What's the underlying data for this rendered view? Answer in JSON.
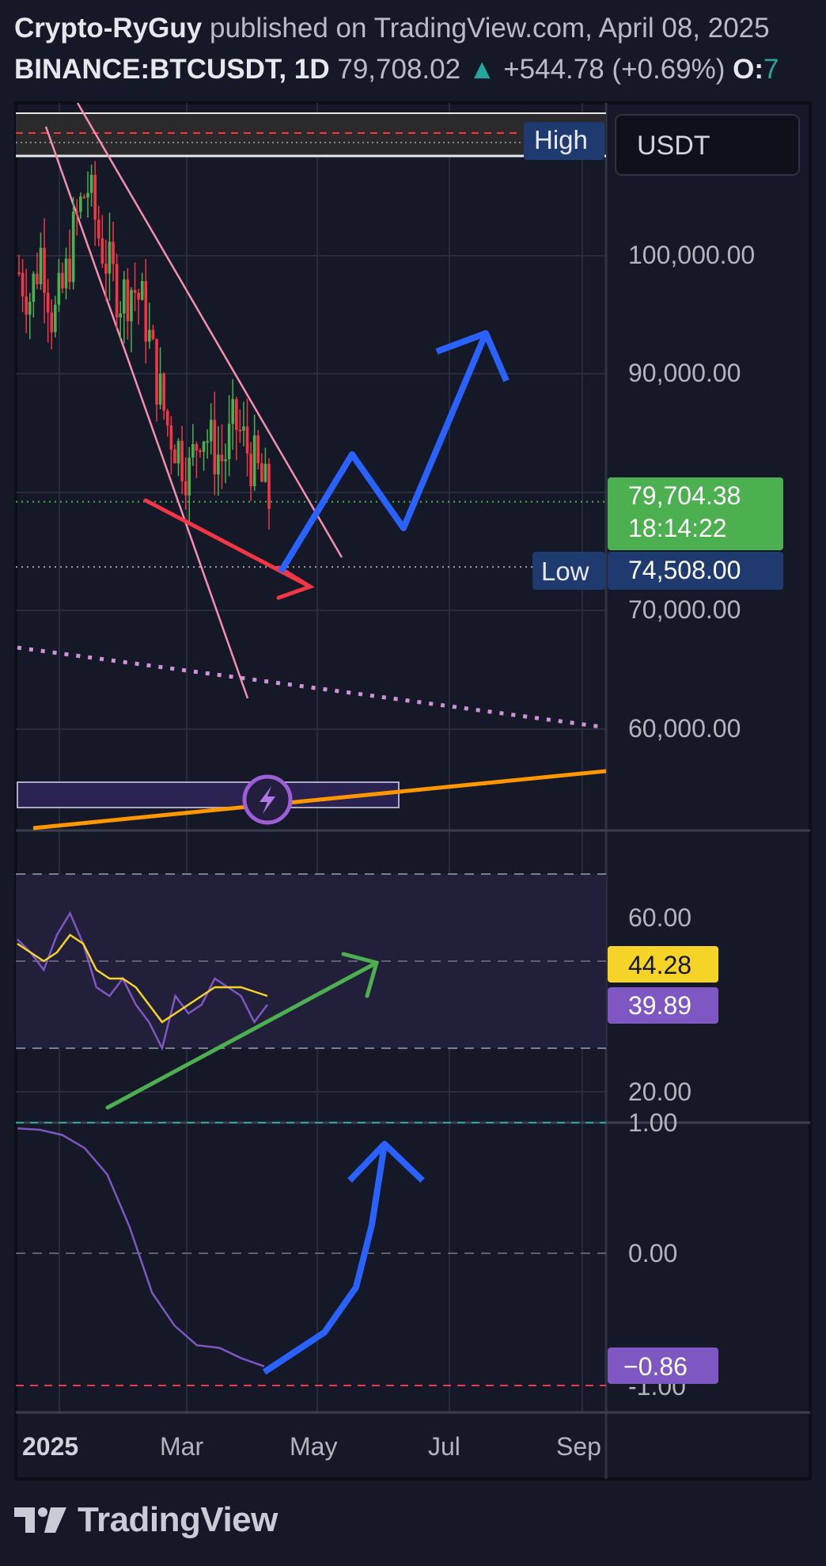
{
  "header": {
    "author": "Crypto-RyGuy",
    "published_text": "published on TradingView.com, April 08, 2025",
    "symbol": "BINANCE:BTCUSDT, 1D",
    "price": "79,708.02",
    "change_arrow": "▲",
    "change": "+544.78 (+0.69%)",
    "open_label": "O:",
    "open_value": "7"
  },
  "currency_button": "USDT",
  "colors": {
    "background": "#151826",
    "up": "#4caf50",
    "down": "#f23645",
    "accent_blue": "#2962ff",
    "rsi": "#7e57c2",
    "rsi_ma": "#f5d327",
    "macd_line": "#7e57c2",
    "trend_orange": "#ff9800",
    "annotation_green": "#4caf50",
    "annotation_red": "#f23645",
    "channel_pink": "#f48fb1"
  },
  "chart_data": [
    {
      "type": "candlestick",
      "pane": "price",
      "x_ticks": [
        "2025",
        "Mar",
        "May",
        "Jul",
        "Sep"
      ],
      "y_ticks": [
        "100,000.00",
        "90,000.00",
        "70,000.00",
        "60,000.00"
      ],
      "y_tick_values": [
        100000,
        90000,
        70000,
        60000
      ],
      "ylim": [
        53500,
        111500
      ],
      "high_label": "High",
      "low_label": "Low",
      "low_value": "74,508.00",
      "current_price_label": "79,704.38",
      "countdown": "18:14:22",
      "current_price": 79704.38,
      "low_price": 74508,
      "closes_sample": [
        98000,
        96000,
        100000,
        94000,
        97000,
        102000,
        105000,
        101000,
        98000,
        96000,
        97000,
        95000,
        90000,
        86000,
        84000,
        82000,
        86000,
        84000,
        83000,
        86000,
        84000,
        82000,
        79700
      ]
    },
    {
      "type": "line",
      "pane": "rsi",
      "y_ticks": [
        "60.00",
        "20.00"
      ],
      "y_tick_values": [
        60,
        20
      ],
      "levels": [
        70,
        50,
        30
      ],
      "series": [
        {
          "values": [
            55,
            52,
            48,
            56,
            61,
            54,
            44,
            42,
            46,
            40,
            36,
            30,
            42,
            38,
            40,
            46,
            44,
            42,
            36,
            40
          ]
        },
        {
          "values": [
            54,
            52,
            50,
            52,
            56,
            54,
            48,
            46,
            46,
            44,
            40,
            36,
            38,
            40,
            42,
            44,
            44,
            44,
            43,
            42
          ]
        }
      ],
      "rsi_label": "39.89",
      "rsi_ma_label": "44.28"
    },
    {
      "type": "line",
      "pane": "oscillator",
      "y_ticks": [
        "1.00",
        "0.00",
        "-1.00"
      ],
      "y_tick_values": [
        1,
        0,
        -1
      ],
      "series": [
        {
          "values": [
            0.95,
            0.94,
            0.9,
            0.8,
            0.6,
            0.2,
            -0.3,
            -0.55,
            -0.7,
            -0.72,
            -0.8,
            -0.86
          ]
        }
      ],
      "value_label": "−0.86"
    }
  ],
  "brand": {
    "logo_text": "TradingView"
  }
}
